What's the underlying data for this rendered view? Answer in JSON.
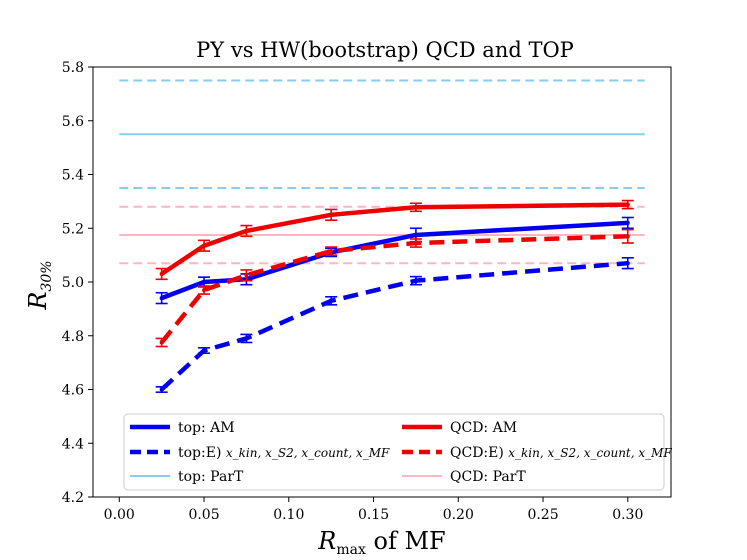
{
  "chart_data": {
    "type": "line",
    "title": "PY vs HW(bootstrap) QCD and TOP",
    "xlabel_main": "R",
    "xlabel_sub": "max",
    "xlabel_rest": " of MF",
    "ylabel_main": "R",
    "ylabel_sub": "30%",
    "xlim": [
      -0.0155,
      0.3255
    ],
    "ylim": [
      4.2,
      5.8
    ],
    "xticks": [
      0.0,
      0.05,
      0.1,
      0.15,
      0.2,
      0.25,
      0.3
    ],
    "xtick_labels": [
      "0.00",
      "0.05",
      "0.10",
      "0.15",
      "0.20",
      "0.25",
      "0.30"
    ],
    "yticks": [
      4.2,
      4.4,
      4.6,
      4.8,
      5.0,
      5.2,
      5.4,
      5.6,
      5.8
    ],
    "ytick_labels": [
      "4.2",
      "4.4",
      "4.6",
      "4.8",
      "5.0",
      "5.2",
      "5.4",
      "5.6",
      "5.8"
    ],
    "colors": {
      "top": "#0000ee",
      "qcd": "#ee0000",
      "top_part": "#87ceeb",
      "qcd_part": "#ffb6c1"
    },
    "series": [
      {
        "name": "top: AM",
        "color_key": "top",
        "style": "solid",
        "x": [
          0.025,
          0.05,
          0.075,
          0.125,
          0.175,
          0.3
        ],
        "y": [
          4.94,
          5.0,
          5.01,
          5.11,
          5.175,
          5.22
        ],
        "err": [
          0.02,
          0.018,
          0.02,
          0.015,
          0.025,
          0.02
        ]
      },
      {
        "name": "top:E)",
        "color_key": "top",
        "style": "dashed",
        "x": [
          0.025,
          0.05,
          0.075,
          0.125,
          0.175,
          0.3
        ],
        "y": [
          4.6,
          4.745,
          4.79,
          4.93,
          5.005,
          5.07
        ],
        "err": [
          0.01,
          0.01,
          0.015,
          0.015,
          0.015,
          0.02
        ]
      },
      {
        "name": "QCD: AM",
        "color_key": "qcd",
        "style": "solid",
        "x": [
          0.025,
          0.05,
          0.075,
          0.125,
          0.175,
          0.3
        ],
        "y": [
          5.03,
          5.135,
          5.19,
          5.25,
          5.278,
          5.288
        ],
        "err": [
          0.02,
          0.02,
          0.02,
          0.02,
          0.015,
          0.015
        ]
      },
      {
        "name": "QCD:E)",
        "color_key": "qcd",
        "style": "dashed",
        "x": [
          0.025,
          0.05,
          0.075,
          0.125,
          0.175,
          0.3
        ],
        "y": [
          4.775,
          4.97,
          5.025,
          5.115,
          5.145,
          5.17
        ],
        "err": [
          0.015,
          0.015,
          0.02,
          0.015,
          0.015,
          0.025
        ]
      }
    ],
    "reference_lines": [
      {
        "name": "top: ParT",
        "color_key": "top_part",
        "y": 5.55,
        "style": "solid"
      },
      {
        "name": "top: ParT upper",
        "color_key": "top_part",
        "y": 5.75,
        "style": "dashed"
      },
      {
        "name": "top: ParT lower",
        "color_key": "top_part",
        "y": 5.35,
        "style": "dashed"
      },
      {
        "name": "QCD: ParT",
        "color_key": "qcd_part",
        "y": 5.175,
        "style": "solid"
      },
      {
        "name": "QCD: ParT upper",
        "color_key": "qcd_part",
        "y": 5.28,
        "style": "dashed"
      },
      {
        "name": "QCD: ParT lower",
        "color_key": "qcd_part",
        "y": 5.07,
        "style": "dashed"
      }
    ],
    "ref_xrange": [
      0.0,
      0.31
    ],
    "legend": {
      "placement": "lower-center",
      "entries": [
        {
          "key": "top_am",
          "label": "top: AM",
          "color_key": "top",
          "style": "solid"
        },
        {
          "key": "qcd_am",
          "label": "QCD: AM",
          "color_key": "qcd",
          "style": "solid"
        },
        {
          "key": "top_e",
          "label": "top:E) ",
          "math": "x_kin, x_S2, x_count, x_MF",
          "color_key": "top",
          "style": "dashed"
        },
        {
          "key": "qcd_e",
          "label": "QCD:E) ",
          "math": "x_kin, x_S2, x_count, x_MF",
          "color_key": "qcd",
          "style": "dashed"
        },
        {
          "key": "top_part",
          "label": "top: ParT",
          "color_key": "top_part",
          "style": "thin"
        },
        {
          "key": "qcd_part",
          "label": "QCD: ParT",
          "color_key": "qcd_part",
          "style": "thin"
        }
      ]
    }
  }
}
